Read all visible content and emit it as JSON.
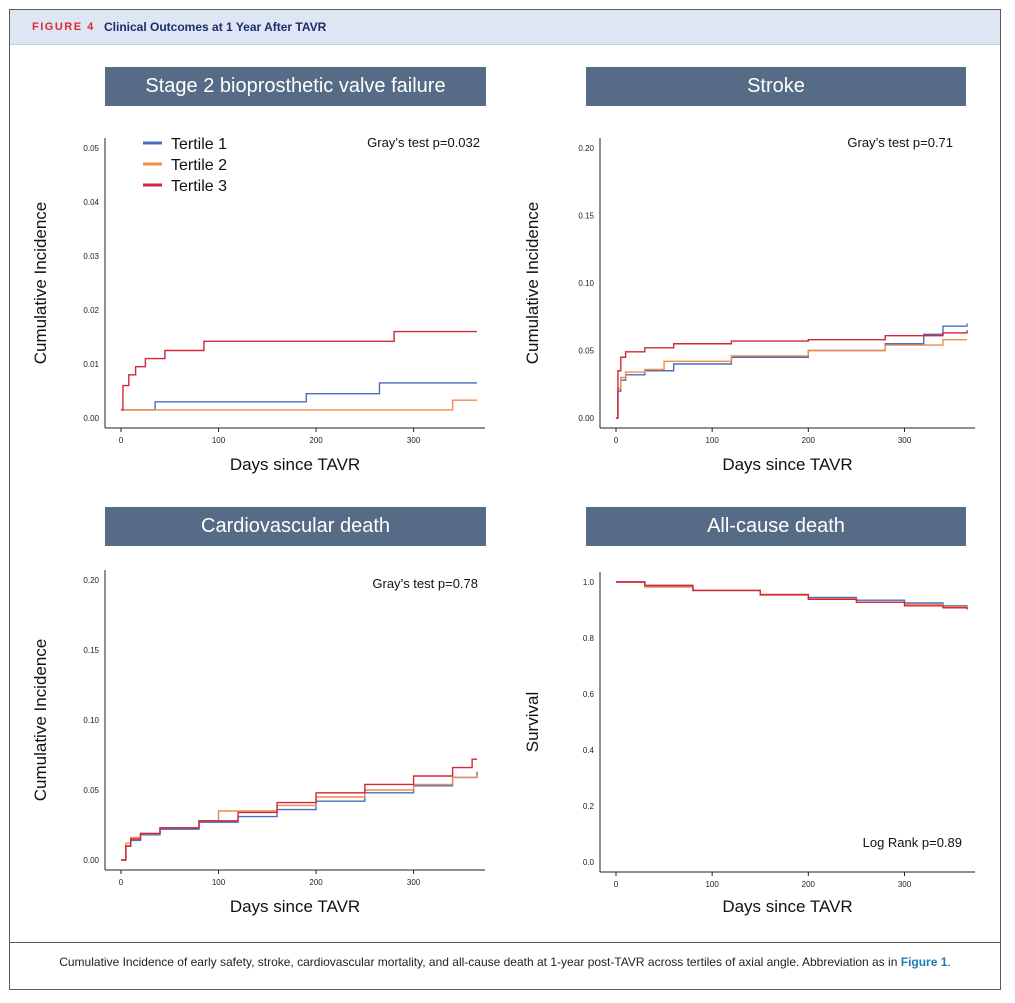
{
  "figure": {
    "label": "FIGURE 4",
    "title": "Clinical Outcomes at 1 Year After TAVR",
    "caption_text": "Cumulative Incidence of early safety, stroke, cardiovascular mortality, and all-cause death at 1-year post-TAVR across tertiles of axial angle. Abbreviation as in ",
    "caption_ref": "Figure 1",
    "caption_end": "."
  },
  "colors": {
    "tertile_1": "#4a6fba",
    "tertile_2": "#f28c4a",
    "tertile_3": "#d3263a",
    "panel_header": "#566b85"
  },
  "legend": [
    "Tertile 1",
    "Tertile 2",
    "Tertile 3"
  ],
  "chart_data": [
    {
      "type": "line",
      "step": true,
      "title": "Stage 2 bioprosthetic valve failure",
      "xlabel": "Days since TAVR",
      "ylabel": "Cumulative Incidence",
      "annotation": "Gray’s test p=0.032",
      "xlim": [
        0,
        365
      ],
      "ylim": [
        0,
        0.05
      ],
      "xticks": [
        0,
        100,
        200,
        300
      ],
      "xtick_labels": [
        "0",
        "100",
        "200",
        "300"
      ],
      "yticks": [
        0,
        0.01,
        0.02,
        0.03,
        0.04,
        0.05
      ],
      "ytick_labels": [
        "0.00",
        "0.01",
        "0.02",
        "0.03",
        "0.04",
        "0.05"
      ],
      "legend_position": "top-left",
      "series": [
        {
          "name": "Tertile 1",
          "x": [
            0,
            35,
            190,
            265,
            365
          ],
          "y": [
            0.0015,
            0.003,
            0.0045,
            0.0065,
            0.0065
          ]
        },
        {
          "name": "Tertile 2",
          "x": [
            0,
            340,
            365
          ],
          "y": [
            0.0015,
            0.0033,
            0.0033
          ]
        },
        {
          "name": "Tertile 3",
          "x": [
            0,
            2,
            8,
            15,
            25,
            45,
            85,
            280,
            365
          ],
          "y": [
            0.0015,
            0.006,
            0.008,
            0.0095,
            0.011,
            0.0125,
            0.0142,
            0.016,
            0.016
          ]
        }
      ]
    },
    {
      "type": "line",
      "step": true,
      "title": "Stroke",
      "xlabel": "Days since TAVR",
      "ylabel": "Cumulative Incidence",
      "annotation": "Gray’s test p=0.71",
      "xlim": [
        0,
        365
      ],
      "ylim": [
        0,
        0.2
      ],
      "xticks": [
        0,
        100,
        200,
        300
      ],
      "xtick_labels": [
        "0",
        "100",
        "200",
        "300"
      ],
      "yticks": [
        0,
        0.05,
        0.1,
        0.15,
        0.2
      ],
      "ytick_labels": [
        "0.00",
        "0.05",
        "0.10",
        "0.15",
        "0.20"
      ],
      "series": [
        {
          "name": "Tertile 1",
          "x": [
            0,
            2,
            5,
            10,
            30,
            60,
            120,
            200,
            280,
            320,
            340,
            365
          ],
          "y": [
            0,
            0.02,
            0.028,
            0.032,
            0.035,
            0.04,
            0.045,
            0.05,
            0.055,
            0.062,
            0.068,
            0.07
          ]
        },
        {
          "name": "Tertile 2",
          "x": [
            0,
            2,
            5,
            10,
            30,
            50,
            120,
            200,
            280,
            340,
            365
          ],
          "y": [
            0,
            0.022,
            0.03,
            0.034,
            0.036,
            0.042,
            0.046,
            0.05,
            0.054,
            0.058,
            0.058
          ]
        },
        {
          "name": "Tertile 3",
          "x": [
            0,
            2,
            5,
            10,
            30,
            60,
            120,
            200,
            280,
            340,
            365
          ],
          "y": [
            0,
            0.035,
            0.045,
            0.049,
            0.052,
            0.055,
            0.057,
            0.058,
            0.061,
            0.063,
            0.065
          ]
        }
      ]
    },
    {
      "type": "line",
      "step": true,
      "title": "Cardiovascular death",
      "xlabel": "Days since TAVR",
      "ylabel": "Cumulative Incidence",
      "annotation": "Gray’s test p=0.78",
      "xlim": [
        0,
        365
      ],
      "ylim": [
        0,
        0.2
      ],
      "xticks": [
        0,
        100,
        200,
        300
      ],
      "xtick_labels": [
        "0",
        "100",
        "200",
        "300"
      ],
      "yticks": [
        0,
        0.05,
        0.1,
        0.15,
        0.2
      ],
      "ytick_labels": [
        "0.00",
        "0.05",
        "0.10",
        "0.15",
        "0.20"
      ],
      "series": [
        {
          "name": "Tertile 1",
          "x": [
            0,
            5,
            10,
            20,
            40,
            80,
            120,
            160,
            200,
            250,
            300,
            340,
            365
          ],
          "y": [
            0,
            0.01,
            0.014,
            0.018,
            0.022,
            0.027,
            0.031,
            0.036,
            0.042,
            0.048,
            0.053,
            0.059,
            0.063
          ]
        },
        {
          "name": "Tertile 2",
          "x": [
            0,
            5,
            10,
            20,
            40,
            80,
            100,
            160,
            200,
            250,
            300,
            340,
            365
          ],
          "y": [
            0,
            0.012,
            0.016,
            0.019,
            0.023,
            0.028,
            0.035,
            0.039,
            0.045,
            0.05,
            0.054,
            0.059,
            0.061
          ]
        },
        {
          "name": "Tertile 3",
          "x": [
            0,
            5,
            10,
            20,
            40,
            80,
            120,
            160,
            200,
            250,
            300,
            340,
            360,
            365
          ],
          "y": [
            0,
            0.01,
            0.015,
            0.019,
            0.023,
            0.028,
            0.034,
            0.041,
            0.048,
            0.054,
            0.06,
            0.066,
            0.072,
            0.072
          ]
        }
      ]
    },
    {
      "type": "line",
      "step": true,
      "title": "All-cause death",
      "xlabel": "Days since TAVR",
      "ylabel": "Survival",
      "annotation": "Log Rank p=0.89",
      "xlim": [
        0,
        365
      ],
      "ylim": [
        0,
        1.0
      ],
      "xticks": [
        0,
        100,
        200,
        300
      ],
      "xtick_labels": [
        "0",
        "100",
        "200",
        "300"
      ],
      "yticks": [
        0,
        0.2,
        0.4,
        0.6,
        0.8,
        1.0
      ],
      "ytick_labels": [
        "0.0",
        "0.2",
        "0.4",
        "0.6",
        "0.8",
        "1.0"
      ],
      "series": [
        {
          "name": "Tertile 1",
          "x": [
            0,
            30,
            80,
            150,
            200,
            250,
            300,
            340,
            365
          ],
          "y": [
            1.0,
            0.985,
            0.97,
            0.955,
            0.945,
            0.935,
            0.925,
            0.915,
            0.905
          ]
        },
        {
          "name": "Tertile 2",
          "x": [
            0,
            30,
            80,
            150,
            200,
            250,
            300,
            340,
            365
          ],
          "y": [
            1.0,
            0.982,
            0.97,
            0.953,
            0.94,
            0.928,
            0.92,
            0.912,
            0.905
          ]
        },
        {
          "name": "Tertile 3",
          "x": [
            0,
            30,
            80,
            150,
            200,
            250,
            300,
            340,
            365
          ],
          "y": [
            1.0,
            0.988,
            0.97,
            0.955,
            0.938,
            0.928,
            0.915,
            0.908,
            0.902
          ]
        }
      ]
    }
  ]
}
